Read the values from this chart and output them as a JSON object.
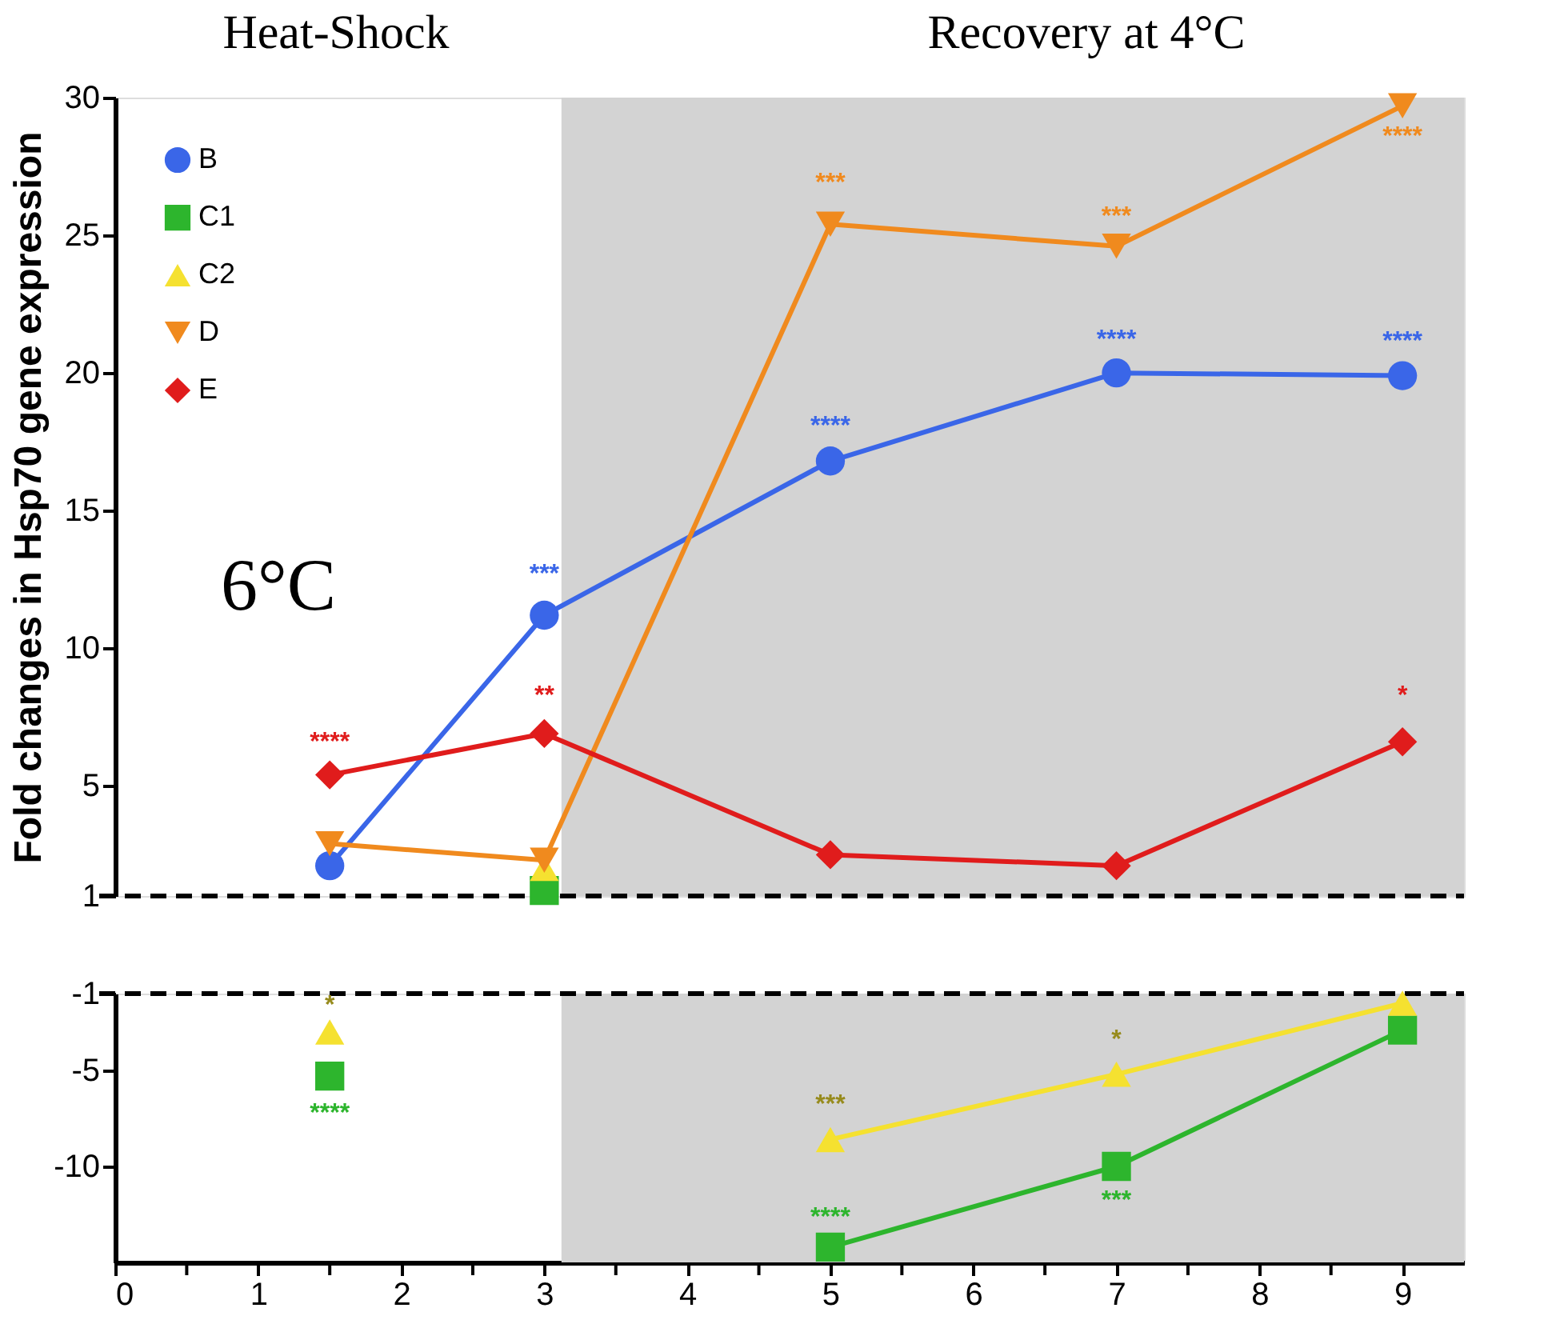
{
  "chart_data": [
    {
      "type": "line",
      "x": [
        1.5,
        3,
        5,
        7,
        9
      ],
      "ylabel": "Fold changes in Hsp70 gene expression",
      "xlim": [
        0,
        9.43
      ],
      "ylim": [
        1,
        30
      ],
      "yticks": [
        1,
        5,
        10,
        15,
        20,
        25,
        30
      ],
      "tick_labels": "y",
      "grid": false,
      "legend": "top left",
      "series": [
        {
          "name": "B",
          "color": "#3a66e8",
          "marker": "circle",
          "values": [
            2.1,
            11.2,
            16.8,
            20.0,
            19.9
          ]
        },
        {
          "name": "C1",
          "color": "#2db52d",
          "marker": "square",
          "values": [
            null,
            1.2,
            null,
            null,
            null
          ]
        },
        {
          "name": "C2",
          "color": "#f5e130",
          "marker": "triangle",
          "values": [
            null,
            2.0,
            null,
            null,
            null
          ]
        },
        {
          "name": "D",
          "color": "#f08a1e",
          "marker": "triangle-down",
          "values": [
            2.9,
            2.3,
            25.4,
            24.6,
            29.7
          ]
        },
        {
          "name": "E",
          "color": "#e01c1c",
          "marker": "diamond",
          "values": [
            5.4,
            6.9,
            2.5,
            2.1,
            6.6
          ]
        }
      ],
      "ref_lines": [
        {
          "axis": "y",
          "value": 1,
          "color": "#000000",
          "line_style": "dashed"
        }
      ],
      "bands": [
        {
          "axis": "x",
          "from": 3.12,
          "to": 9.43,
          "color": "#d3d3d3"
        }
      ],
      "annotations": [
        "Heat-Shock",
        "Recovery at 4°C",
        "6°C",
        {
          "text": "***",
          "x": 3,
          "y": 11.2
        },
        {
          "text": "****",
          "x": 5,
          "y": 16.8
        },
        {
          "text": "****",
          "x": 7,
          "y": 20.0
        },
        {
          "text": "****",
          "x": 9,
          "y": 19.9
        },
        {
          "text": "***",
          "x": 5,
          "y": 25.4
        },
        {
          "text": "***",
          "x": 7,
          "y": 24.6
        },
        {
          "text": "****",
          "x": 9,
          "y": 29.7
        },
        {
          "text": "****",
          "x": 1.5,
          "y": 5.4
        },
        {
          "text": "**",
          "x": 3,
          "y": 6.9
        },
        {
          "text": "*",
          "x": 9,
          "y": 6.6
        }
      ]
    },
    {
      "type": "line",
      "x": [
        1.5,
        3,
        5,
        7,
        9
      ],
      "xlim": [
        0,
        9.43
      ],
      "ylim": [
        -15,
        -1
      ],
      "xticks": [
        0,
        {
          "value": 0.5,
          "label": null
        },
        1,
        {
          "value": 1.5,
          "label": null
        },
        2,
        {
          "value": 2.5,
          "label": null
        },
        3,
        {
          "value": 3.5,
          "label": null
        },
        4,
        {
          "value": 4.5,
          "label": null
        },
        5,
        {
          "value": 5.5,
          "label": null
        },
        6,
        {
          "value": 6.5,
          "label": null
        },
        7,
        {
          "value": 7.5,
          "label": null
        },
        8,
        {
          "value": 8.5,
          "label": null
        },
        9
      ],
      "yticks": [
        -10,
        -5,
        -1
      ],
      "grid": false,
      "series": [
        {
          "color": "#2db52d",
          "marker": "square",
          "values": [
            -5.3,
            null,
            -14.2,
            -10.0,
            -2.9
          ]
        },
        {
          "color": "#f5e130",
          "marker": "triangle",
          "values": [
            -3.0,
            null,
            -8.6,
            -5.2,
            -1.5
          ]
        }
      ],
      "ref_lines": [
        {
          "axis": "y",
          "value": -1,
          "color": "#000000",
          "line_style": "dashed"
        }
      ],
      "bands": [
        {
          "axis": "x",
          "from": 3.12,
          "to": 9.43,
          "color": "#d3d3d3"
        }
      ],
      "annotations": [
        {
          "text": "****",
          "x": 1.5,
          "y": -5.3
        },
        {
          "text": "****",
          "x": 5,
          "y": -14.2
        },
        {
          "text": "***",
          "x": 7,
          "y": -10.0
        },
        {
          "text": "*",
          "x": 1.5,
          "y": -3.0
        },
        {
          "text": "***",
          "x": 5,
          "y": -8.6
        },
        {
          "text": "*",
          "x": 7,
          "y": -5.2
        }
      ]
    }
  ]
}
